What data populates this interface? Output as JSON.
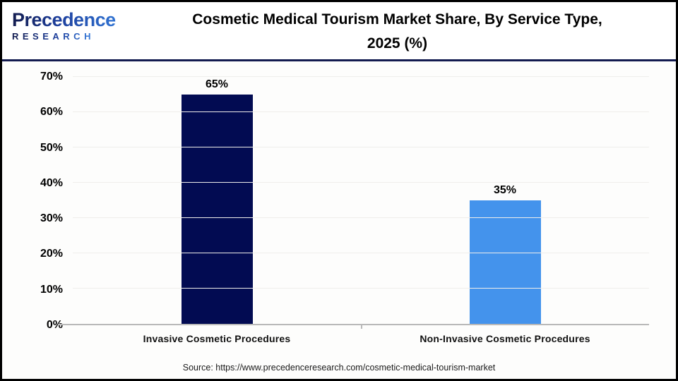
{
  "logo": {
    "line1": "Precedence",
    "line2": "RESEARCH"
  },
  "header": {
    "title_line1": "Cosmetic Medical Tourism Market Share, By Service Type,",
    "title_line2": "2025 (%)"
  },
  "source": {
    "text": "Source: https://www.precedenceresearch.com/cosmetic-medical-tourism-market"
  },
  "colors": {
    "brand_navy": "#131a4f",
    "brand_blue": "#2f72d2",
    "bar_invasive": "#020b52",
    "bar_non_invasive": "#4493ec",
    "axis_line": "#b9b9b9",
    "gridline": "#efeeeb"
  },
  "chart_data": {
    "type": "bar",
    "title": "Cosmetic Medical Tourism Market Share, By Service Type, 2025 (%)",
    "categories": [
      "Invasive Cosmetic Procedures",
      "Non-Invasive Cosmetic Procedures"
    ],
    "values": [
      65,
      35
    ],
    "value_labels": [
      "65%",
      "35%"
    ],
    "bar_colors": [
      "#020b52",
      "#4493ec"
    ],
    "xlabel": "",
    "ylabel": "",
    "ylim": [
      0,
      70
    ],
    "ytick_step": 10,
    "ytick_suffix": "%",
    "grid": true,
    "legend": "none"
  }
}
